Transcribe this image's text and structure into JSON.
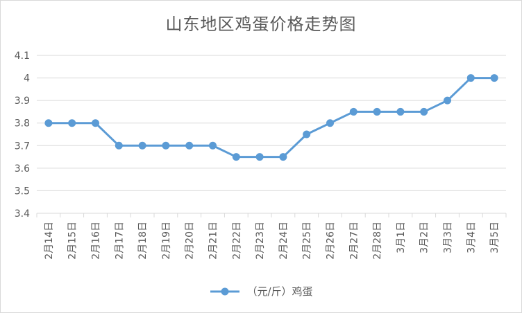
{
  "chart_data": {
    "type": "line",
    "title": "山东地区鸡蛋价格走势图",
    "xlabel": "",
    "ylabel": "",
    "categories": [
      "2月14日",
      "2月15日",
      "2月16日",
      "2月17日",
      "2月18日",
      "2月19日",
      "2月20日",
      "2月21日",
      "2月22日",
      "2月23日",
      "2月24日",
      "2月25日",
      "2月26日",
      "2月27日",
      "2月28日",
      "3月1日",
      "3月2日",
      "3月3日",
      "3月4日",
      "3月5日"
    ],
    "series": [
      {
        "name": "（元/斤）鸡蛋",
        "values": [
          3.8,
          3.8,
          3.8,
          3.7,
          3.7,
          3.7,
          3.7,
          3.7,
          3.65,
          3.65,
          3.65,
          3.75,
          3.8,
          3.85,
          3.85,
          3.85,
          3.85,
          3.9,
          4.0,
          4.0
        ]
      }
    ],
    "ylim": [
      3.4,
      4.1
    ],
    "yticks": [
      "3.4",
      "3.5",
      "3.6",
      "3.7",
      "3.8",
      "3.9",
      "4",
      "4.1"
    ],
    "grid": true,
    "legend_position": "bottom",
    "line_color": "#5b9bd5",
    "grid_color": "#d9d9d9"
  }
}
